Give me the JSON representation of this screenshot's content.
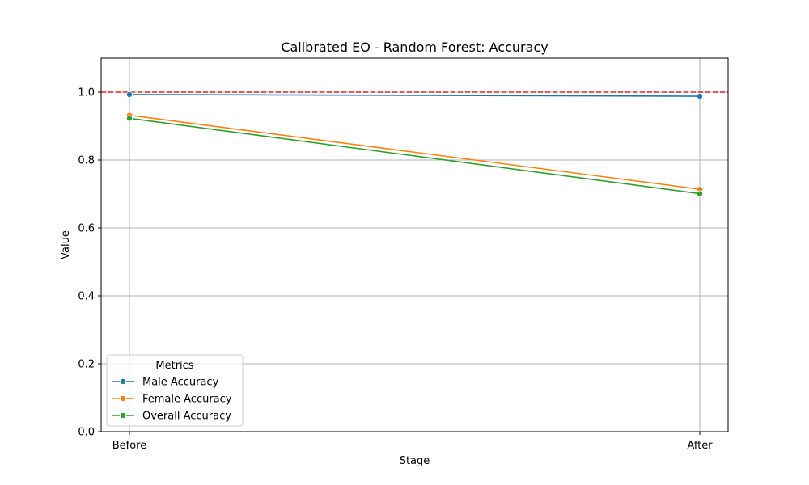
{
  "chart_data": {
    "type": "line",
    "title": "Calibrated EO - Random Forest: Accuracy",
    "xlabel": "Stage",
    "ylabel": "Value",
    "categories": [
      "Before",
      "After"
    ],
    "ylim": [
      0,
      1.1
    ],
    "yticks": [
      "0.0",
      "0.2",
      "0.4",
      "0.6",
      "0.8",
      "1.0"
    ],
    "grid": true,
    "reference_line": {
      "y": 1.0,
      "color": "#d62728",
      "style": "dashed"
    },
    "legend": {
      "title": "Metrics",
      "placement": "lower-left"
    },
    "series": [
      {
        "name": "Male Accuracy",
        "color": "#1f77b4",
        "values": [
          0.993,
          0.988
        ]
      },
      {
        "name": "Female Accuracy",
        "color": "#ff7f0e",
        "values": [
          0.932,
          0.714
        ]
      },
      {
        "name": "Overall Accuracy",
        "color": "#2ca02c",
        "values": [
          0.923,
          0.701
        ]
      }
    ]
  }
}
